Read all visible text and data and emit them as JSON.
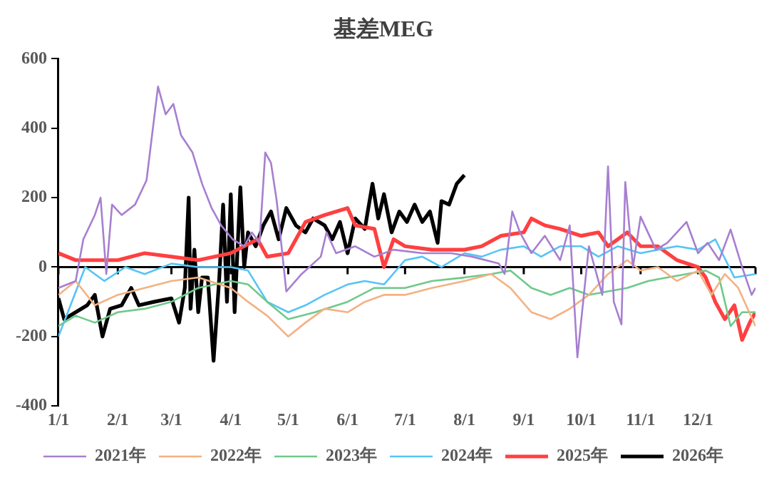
{
  "chart_data": {
    "type": "line",
    "title": "基差MEG",
    "legend": "bottom",
    "grid": false,
    "marker": "none",
    "line_style": "solid",
    "xlim": [
      "--01-01",
      "--12-31"
    ],
    "xticks": [
      {
        "value": "--01-01",
        "label": "1/1"
      },
      {
        "value": "--02-01",
        "label": "2/1"
      },
      {
        "value": "--03-01",
        "label": "3/1"
      },
      {
        "value": "--04-01",
        "label": "4/1"
      },
      {
        "value": "--05-01",
        "label": "5/1"
      },
      {
        "value": "--06-01",
        "label": "6/1"
      },
      {
        "value": "--07-01",
        "label": "7/1"
      },
      {
        "value": "--08-01",
        "label": "8/1"
      },
      {
        "value": "--09-01",
        "label": "9/1"
      },
      {
        "value": "--10-01",
        "label": "10/1"
      },
      {
        "value": "--11-01",
        "label": "11/1"
      },
      {
        "value": "--12-01",
        "label": "12/1"
      },
      {
        "value": "--12-31",
        "label": null
      }
    ],
    "ylim": [
      -400,
      600
    ],
    "yticks": [
      -400,
      -200,
      0,
      200,
      400,
      600
    ],
    "ref_lines": [
      {
        "axis": "y",
        "value": 0,
        "color": "#000000"
      }
    ],
    "series": [
      {
        "name": "2021年",
        "color": "#a77fd0",
        "x": [
          "--01-01",
          "--01-10",
          "--01-14",
          "--01-20",
          "--01-23",
          "--01-26",
          "--01-29",
          "--02-03",
          "--02-10",
          "--02-16",
          "--02-22",
          "--02-26",
          "--03-02",
          "--03-06",
          "--03-12",
          "--03-17",
          "--03-22",
          "--03-27",
          "--04-02",
          "--04-08",
          "--04-12",
          "--04-16",
          "--04-19",
          "--04-22",
          "--04-25",
          "--04-30",
          "--05-08",
          "--05-18",
          "--05-21",
          "--05-26",
          "--06-05",
          "--06-15",
          "--06-25",
          "--07-10",
          "--07-25",
          "--08-05",
          "--08-19",
          "--08-22",
          "--08-26",
          "--08-30",
          "--09-05",
          "--09-12",
          "--09-20",
          "--09-25",
          "--09-29",
          "--10-05",
          "--10-12",
          "--10-15",
          "--10-18",
          "--10-22",
          "--10-24",
          "--10-28",
          "--11-01",
          "--11-09",
          "--11-15",
          "--11-25",
          "--12-01",
          "--12-06",
          "--12-12",
          "--12-18",
          "--12-24",
          "--12-29",
          "--12-31"
        ],
        "values": [
          -60,
          -40,
          80,
          150,
          200,
          -20,
          180,
          150,
          180,
          250,
          520,
          440,
          470,
          380,
          330,
          240,
          170,
          120,
          80,
          60,
          100,
          70,
          330,
          300,
          190,
          -70,
          -20,
          30,
          100,
          40,
          60,
          30,
          50,
          40,
          40,
          30,
          10,
          -20,
          160,
          100,
          40,
          90,
          20,
          120,
          -260,
          60,
          -80,
          290,
          -100,
          -165,
          245,
          0,
          145,
          50,
          70,
          130,
          40,
          70,
          20,
          108,
          0,
          -80,
          -60
        ]
      },
      {
        "name": "2022年",
        "color": "#f4b183",
        "x": [
          "--01-01",
          "--01-10",
          "--01-20",
          "--02-01",
          "--02-15",
          "--03-01",
          "--03-15",
          "--04-01",
          "--04-10",
          "--04-20",
          "--05-01",
          "--05-10",
          "--05-20",
          "--06-01",
          "--06-10",
          "--06-20",
          "--07-01",
          "--07-15",
          "--08-01",
          "--08-15",
          "--08-25",
          "--09-05",
          "--09-15",
          "--09-25",
          "--10-05",
          "--10-15",
          "--10-25",
          "--11-01",
          "--11-10",
          "--11-20",
          "--12-01",
          "--12-08",
          "--12-15",
          "--12-22",
          "--12-31"
        ],
        "values": [
          -80,
          -40,
          -110,
          -80,
          -60,
          -40,
          -30,
          -60,
          -100,
          -140,
          -200,
          -160,
          -120,
          -130,
          -100,
          -80,
          -80,
          -60,
          -40,
          -20,
          -60,
          -130,
          -150,
          -120,
          -80,
          -20,
          20,
          -10,
          0,
          -40,
          -10,
          -80,
          -20,
          -60,
          -170
        ]
      },
      {
        "name": "2023年",
        "color": "#6fc98a",
        "x": [
          "--01-01",
          "--01-10",
          "--01-20",
          "--02-01",
          "--02-15",
          "--03-01",
          "--03-15",
          "--04-01",
          "--04-10",
          "--04-20",
          "--05-01",
          "--05-15",
          "--06-01",
          "--06-15",
          "--07-01",
          "--07-15",
          "--08-01",
          "--08-15",
          "--08-25",
          "--09-05",
          "--09-15",
          "--09-25",
          "--10-05",
          "--10-15",
          "--10-25",
          "--11-05",
          "--11-15",
          "--11-25",
          "--12-05",
          "--12-12",
          "--12-18",
          "--12-24",
          "--12-31"
        ],
        "values": [
          -170,
          -140,
          -160,
          -130,
          -120,
          -100,
          -60,
          -40,
          -50,
          -100,
          -150,
          -130,
          -100,
          -60,
          -60,
          -40,
          -30,
          -20,
          -10,
          -60,
          -80,
          -60,
          -80,
          -70,
          -60,
          -40,
          -30,
          -20,
          -10,
          -30,
          -170,
          -130,
          -130
        ]
      },
      {
        "name": "2024年",
        "color": "#56c4f5",
        "x": [
          "--01-01",
          "--01-08",
          "--01-15",
          "--01-25",
          "--02-05",
          "--02-15",
          "--03-01",
          "--03-15",
          "--04-01",
          "--04-10",
          "--04-20",
          "--05-01",
          "--05-10",
          "--05-20",
          "--06-01",
          "--06-10",
          "--06-20",
          "--07-01",
          "--07-10",
          "--07-20",
          "--08-01",
          "--08-10",
          "--08-20",
          "--09-01",
          "--09-10",
          "--09-20",
          "--10-01",
          "--10-10",
          "--10-20",
          "--11-01",
          "--11-10",
          "--11-20",
          "--12-01",
          "--12-10",
          "--12-20",
          "--12-31"
        ],
        "values": [
          -200,
          -100,
          0,
          -40,
          0,
          -20,
          10,
          0,
          0,
          -10,
          -100,
          -130,
          -110,
          -80,
          -50,
          -40,
          -50,
          20,
          30,
          0,
          40,
          30,
          50,
          60,
          30,
          60,
          60,
          30,
          60,
          40,
          50,
          60,
          50,
          80,
          -30,
          -20
        ]
      },
      {
        "name": "2025年",
        "color": "#ff4040",
        "x": [
          "--01-01",
          "--01-10",
          "--01-20",
          "--02-01",
          "--02-15",
          "--03-01",
          "--03-15",
          "--04-01",
          "--04-15",
          "--04-20",
          "--05-01",
          "--05-10",
          "--05-20",
          "--06-01",
          "--06-05",
          "--06-15",
          "--06-20",
          "--06-25",
          "--07-01",
          "--07-15",
          "--08-01",
          "--08-10",
          "--08-20",
          "--09-01",
          "--09-05",
          "--09-12",
          "--09-20",
          "--10-01",
          "--10-10",
          "--10-15",
          "--10-25",
          "--11-01",
          "--11-10",
          "--11-20",
          "--12-01",
          "--12-05",
          "--12-10",
          "--12-15",
          "--12-20",
          "--12-24",
          "--12-28",
          "--12-31"
        ],
        "values": [
          40,
          20,
          20,
          20,
          40,
          30,
          20,
          40,
          80,
          30,
          40,
          130,
          150,
          170,
          120,
          110,
          0,
          80,
          60,
          50,
          50,
          60,
          90,
          100,
          140,
          120,
          110,
          90,
          100,
          60,
          100,
          60,
          60,
          20,
          0,
          -30,
          -100,
          -150,
          -110,
          -210,
          -160,
          -130
        ]
      },
      {
        "name": "2026年",
        "color": "#000000",
        "x": [
          "--01-01",
          "--01-04",
          "--01-10",
          "--01-16",
          "--01-20",
          "--01-24",
          "--01-28",
          "--02-03",
          "--02-08",
          "--02-12",
          "--02-20",
          "--03-01",
          "--03-05",
          "--03-08",
          "--03-10",
          "--03-11",
          "--03-13",
          "--03-15",
          "--03-17",
          "--03-20",
          "--03-23",
          "--03-26",
          "--03-28",
          "--03-30",
          "--04-01",
          "--04-03",
          "--04-06",
          "--04-08",
          "--04-10",
          "--04-14",
          "--04-18",
          "--04-22",
          "--04-26",
          "--04-30",
          "--05-05",
          "--05-10",
          "--05-14",
          "--05-20",
          "--05-24",
          "--05-28",
          "--06-01",
          "--06-05",
          "--06-10",
          "--06-14",
          "--06-17",
          "--06-20",
          "--06-24",
          "--06-28",
          "--07-02",
          "--07-06",
          "--07-10",
          "--07-14",
          "--07-18",
          "--07-20",
          "--07-24",
          "--07-28",
          "--08-01"
        ],
        "values": [
          -90,
          -150,
          -130,
          -110,
          -80,
          -200,
          -120,
          -110,
          -60,
          -110,
          -100,
          -90,
          -160,
          -60,
          200,
          -120,
          50,
          -130,
          -30,
          -30,
          -270,
          -30,
          180,
          -100,
          210,
          -130,
          230,
          0,
          100,
          60,
          120,
          160,
          80,
          170,
          120,
          100,
          140,
          120,
          80,
          130,
          40,
          140,
          110,
          240,
          140,
          210,
          100,
          160,
          130,
          180,
          130,
          160,
          70,
          190,
          180,
          240,
          265
        ]
      }
    ]
  }
}
